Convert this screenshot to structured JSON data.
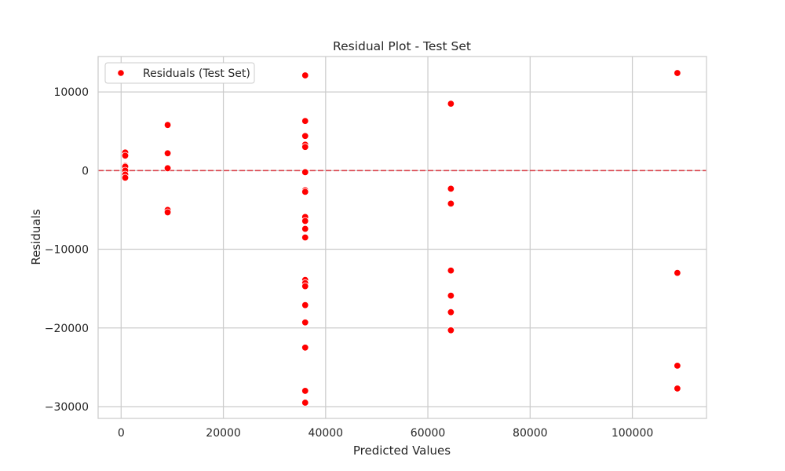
{
  "chart_data": {
    "type": "scatter",
    "title": "Residual Plot - Test Set",
    "xlabel": "Predicted Values",
    "ylabel": "Residuals",
    "xlim": [
      -4500,
      114500
    ],
    "ylim": [
      -31500,
      14500
    ],
    "x_ticks": [
      0,
      20000,
      40000,
      60000,
      80000,
      100000
    ],
    "x_tick_labels": [
      "0",
      "20000",
      "40000",
      "60000",
      "80000",
      "100000"
    ],
    "y_ticks": [
      -30000,
      -20000,
      -10000,
      0,
      10000
    ],
    "y_tick_labels": [
      "−30000",
      "−20000",
      "−10000",
      "0",
      "10000"
    ],
    "grid": true,
    "legend_position": "top-left",
    "reference_line": {
      "y": 0,
      "style": "dashed",
      "color": "#d9404a"
    },
    "series": [
      {
        "name": "Residuals (Test Set)",
        "color": "#ff0000",
        "points": [
          [
            800,
            2300
          ],
          [
            800,
            1900
          ],
          [
            800,
            600
          ],
          [
            800,
            500
          ],
          [
            800,
            0
          ],
          [
            800,
            -500
          ],
          [
            800,
            -900
          ],
          [
            9100,
            5800
          ],
          [
            9100,
            2200
          ],
          [
            9100,
            300
          ],
          [
            9100,
            -5000
          ],
          [
            9100,
            -5300
          ],
          [
            36000,
            12100
          ],
          [
            36000,
            6300
          ],
          [
            36000,
            4400
          ],
          [
            36000,
            3300
          ],
          [
            36000,
            3000
          ],
          [
            36000,
            -200
          ],
          [
            36000,
            -2500
          ],
          [
            36000,
            -2700
          ],
          [
            36000,
            -5900
          ],
          [
            36000,
            -6400
          ],
          [
            36000,
            -7400
          ],
          [
            36000,
            -8500
          ],
          [
            36000,
            -13900
          ],
          [
            36000,
            -14300
          ],
          [
            36000,
            -14700
          ],
          [
            36000,
            -17100
          ],
          [
            36000,
            -19300
          ],
          [
            36000,
            -22500
          ],
          [
            36000,
            -28000
          ],
          [
            36000,
            -29500
          ],
          [
            64500,
            8500
          ],
          [
            64500,
            -2300
          ],
          [
            64500,
            -4200
          ],
          [
            64500,
            -12700
          ],
          [
            64500,
            -15900
          ],
          [
            64500,
            -18000
          ],
          [
            64500,
            -20300
          ],
          [
            108800,
            12400
          ],
          [
            108800,
            -13000
          ],
          [
            108800,
            -24800
          ],
          [
            108800,
            -27700
          ]
        ]
      }
    ]
  }
}
